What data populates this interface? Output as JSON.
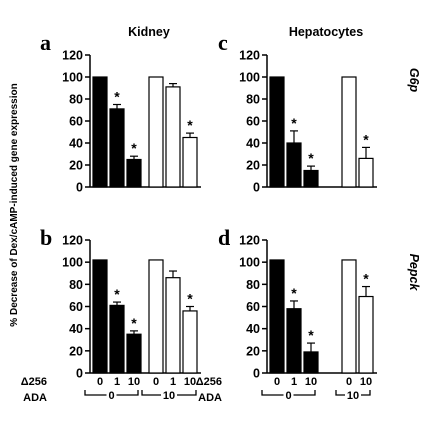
{
  "ylabel": "% Decrease of Dex/cAMP-induced gene expression",
  "columns": [
    {
      "title": "Kidney"
    },
    {
      "title": "Hepatocytes"
    }
  ],
  "rows": [
    {
      "gene": "G6p"
    },
    {
      "gene": "Pepck"
    }
  ],
  "x_rows": [
    {
      "label": "Δ256"
    },
    {
      "label": "ADA"
    }
  ],
  "colors": {
    "filled": "#000000",
    "open": "#ffffff",
    "stroke": "#000000"
  },
  "chart_data": [
    {
      "panel": "a",
      "column": "Kidney",
      "gene": "G6p",
      "type": "bar",
      "ylim": [
        0,
        120
      ],
      "yticks": [
        0,
        20,
        40,
        60,
        80,
        100,
        120
      ],
      "bars": [
        {
          "delta256": "0",
          "ada": "0",
          "value": 100,
          "error": 0,
          "fill": "filled",
          "sig": ""
        },
        {
          "delta256": "1",
          "ada": "0",
          "value": 71,
          "error": 4,
          "fill": "filled",
          "sig": "*"
        },
        {
          "delta256": "10",
          "ada": "0",
          "value": 25,
          "error": 3,
          "fill": "filled",
          "sig": "*"
        },
        {
          "delta256": "0",
          "ada": "10",
          "value": 100,
          "error": 0,
          "fill": "open",
          "sig": ""
        },
        {
          "delta256": "1",
          "ada": "10",
          "value": 91,
          "error": 3,
          "fill": "open",
          "sig": ""
        },
        {
          "delta256": "10",
          "ada": "10",
          "value": 45,
          "error": 4,
          "fill": "open",
          "sig": "*"
        }
      ],
      "groups": [
        {
          "label": "0"
        },
        {
          "label": "10"
        }
      ]
    },
    {
      "panel": "c",
      "column": "Hepatocytes",
      "gene": "G6p",
      "type": "bar",
      "ylim": [
        0,
        120
      ],
      "yticks": [
        0,
        20,
        40,
        60,
        80,
        100,
        120
      ],
      "bars": [
        {
          "delta256": "0",
          "ada": "0",
          "value": 100,
          "error": 0,
          "fill": "filled",
          "sig": ""
        },
        {
          "delta256": "1",
          "ada": "0",
          "value": 40,
          "error": 11,
          "fill": "filled",
          "sig": "*"
        },
        {
          "delta256": "10",
          "ada": "0",
          "value": 15,
          "error": 4,
          "fill": "filled",
          "sig": "*"
        },
        {
          "delta256": "0",
          "ada": "10",
          "value": 100,
          "error": 0,
          "fill": "open",
          "sig": ""
        },
        {
          "delta256": "10",
          "ada": "10",
          "value": 26,
          "error": 10,
          "fill": "open",
          "sig": "*"
        }
      ],
      "groups": [
        {
          "label": "0"
        },
        {
          "label": "10"
        }
      ]
    },
    {
      "panel": "b",
      "column": "Kidney",
      "gene": "Pepck",
      "type": "bar",
      "ylim": [
        0,
        120
      ],
      "yticks": [
        0,
        20,
        40,
        60,
        80,
        100,
        120
      ],
      "bars": [
        {
          "delta256": "0",
          "ada": "0",
          "value": 102,
          "error": 0,
          "fill": "filled",
          "sig": ""
        },
        {
          "delta256": "1",
          "ada": "0",
          "value": 61,
          "error": 3,
          "fill": "filled",
          "sig": "*"
        },
        {
          "delta256": "10",
          "ada": "0",
          "value": 35,
          "error": 3,
          "fill": "filled",
          "sig": "*"
        },
        {
          "delta256": "0",
          "ada": "10",
          "value": 102,
          "error": 0,
          "fill": "open",
          "sig": ""
        },
        {
          "delta256": "1",
          "ada": "10",
          "value": 86,
          "error": 6,
          "fill": "open",
          "sig": ""
        },
        {
          "delta256": "10",
          "ada": "10",
          "value": 56,
          "error": 4,
          "fill": "open",
          "sig": "*"
        }
      ],
      "groups": [
        {
          "label": "0"
        },
        {
          "label": "10"
        }
      ]
    },
    {
      "panel": "d",
      "column": "Hepatocytes",
      "gene": "Pepck",
      "type": "bar",
      "ylim": [
        0,
        120
      ],
      "yticks": [
        0,
        20,
        40,
        60,
        80,
        100,
        120
      ],
      "bars": [
        {
          "delta256": "0",
          "ada": "0",
          "value": 102,
          "error": 0,
          "fill": "filled",
          "sig": ""
        },
        {
          "delta256": "1",
          "ada": "0",
          "value": 58,
          "error": 7,
          "fill": "filled",
          "sig": "*"
        },
        {
          "delta256": "10",
          "ada": "0",
          "value": 19,
          "error": 8,
          "fill": "filled",
          "sig": "*"
        },
        {
          "delta256": "0",
          "ada": "10",
          "value": 102,
          "error": 0,
          "fill": "open",
          "sig": ""
        },
        {
          "delta256": "10",
          "ada": "10",
          "value": 69,
          "error": 9,
          "fill": "open",
          "sig": "*"
        }
      ],
      "groups": [
        {
          "label": "0"
        },
        {
          "label": "10"
        }
      ]
    }
  ]
}
